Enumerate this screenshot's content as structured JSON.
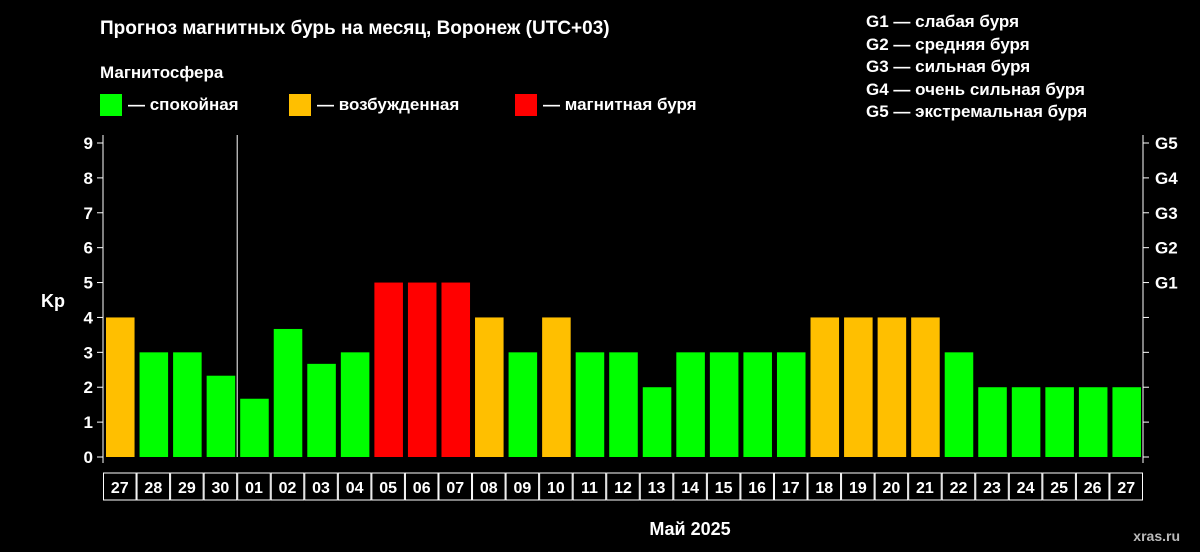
{
  "title": "Прогноз магнитных бурь на месяц, Воронеж (UTC+03)",
  "legend": {
    "title": "Магнитосфера",
    "items": [
      {
        "color": "#00ff00",
        "label": "— спокойная"
      },
      {
        "color": "#ffbf00",
        "label": "— возбужденная"
      },
      {
        "color": "#ff0000",
        "label": "— магнитная буря"
      }
    ]
  },
  "storm_levels": [
    "G1 — слабая буря",
    "G2 — средняя буря",
    "G3 — сильная буря",
    "G4 — очень сильная буря",
    "G5 — экстремальная буря"
  ],
  "watermark": "xras.ru",
  "chart_data": {
    "type": "bar",
    "title": "Прогноз магнитных бурь на месяц, Воронеж (UTC+03)",
    "xlabel": "Май 2025",
    "ylabel": "Kp",
    "ylim": [
      0,
      9
    ],
    "yticks": [
      0,
      1,
      2,
      3,
      4,
      5,
      6,
      7,
      8,
      9
    ],
    "y2ticks": [
      {
        "value": 5,
        "label": "G1"
      },
      {
        "value": 6,
        "label": "G2"
      },
      {
        "value": 7,
        "label": "G3"
      },
      {
        "value": 8,
        "label": "G4"
      },
      {
        "value": 9,
        "label": "G5"
      }
    ],
    "categories": [
      "27",
      "28",
      "29",
      "30",
      "01",
      "02",
      "03",
      "04",
      "05",
      "06",
      "07",
      "08",
      "09",
      "10",
      "11",
      "12",
      "13",
      "14",
      "15",
      "16",
      "17",
      "18",
      "19",
      "20",
      "21",
      "22",
      "23",
      "24",
      "25",
      "26",
      "27"
    ],
    "values": [
      4,
      3,
      3,
      2.33,
      1.67,
      3.67,
      2.67,
      3,
      5,
      5,
      5,
      4,
      3,
      4,
      3,
      3,
      2,
      3,
      3,
      3,
      3,
      4,
      4,
      4,
      4,
      3,
      2,
      2,
      2,
      2,
      2
    ],
    "colors": [
      "#ffbf00",
      "#00ff00",
      "#00ff00",
      "#00ff00",
      "#00ff00",
      "#00ff00",
      "#00ff00",
      "#00ff00",
      "#ff0000",
      "#ff0000",
      "#ff0000",
      "#ffbf00",
      "#00ff00",
      "#ffbf00",
      "#00ff00",
      "#00ff00",
      "#00ff00",
      "#00ff00",
      "#00ff00",
      "#00ff00",
      "#00ff00",
      "#ffbf00",
      "#ffbf00",
      "#ffbf00",
      "#ffbf00",
      "#00ff00",
      "#00ff00",
      "#00ff00",
      "#00ff00",
      "#00ff00",
      "#00ff00"
    ],
    "month_separator_after": "30",
    "grid": false
  }
}
